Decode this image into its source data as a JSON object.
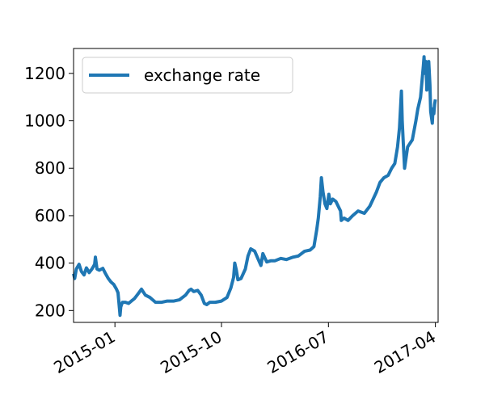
{
  "chart_data": {
    "type": "line",
    "title": "",
    "xlabel": "",
    "ylabel": "",
    "x_ticks": [
      "2015-01",
      "2015-10",
      "2016-07",
      "2017-04"
    ],
    "y_ticks": [
      200,
      400,
      600,
      800,
      1000,
      1200
    ],
    "xlim": [
      "2014-09-17",
      "2017-04-08"
    ],
    "ylim": [
      150,
      1305
    ],
    "grid": false,
    "legend": {
      "position": "top-left"
    },
    "colors": {
      "series": "#1f77b4",
      "axes": "#000000"
    },
    "series": [
      {
        "name": "exchange rate",
        "x": [
          "2014-09-17",
          "2014-09-20",
          "2014-09-24",
          "2014-10-01",
          "2014-10-07",
          "2014-10-14",
          "2014-10-20",
          "2014-10-27",
          "2014-11-03",
          "2014-11-10",
          "2014-11-12",
          "2014-11-16",
          "2014-11-22",
          "2014-12-01",
          "2014-12-08",
          "2014-12-15",
          "2014-12-22",
          "2014-12-29",
          "2015-01-05",
          "2015-01-09",
          "2015-01-13",
          "2015-01-14",
          "2015-01-16",
          "2015-01-20",
          "2015-01-28",
          "2015-02-05",
          "2015-02-12",
          "2015-02-20",
          "2015-03-01",
          "2015-03-10",
          "2015-03-20",
          "2015-04-01",
          "2015-04-15",
          "2015-05-01",
          "2015-05-15",
          "2015-06-01",
          "2015-06-15",
          "2015-07-01",
          "2015-07-10",
          "2015-07-15",
          "2015-07-22",
          "2015-08-01",
          "2015-08-10",
          "2015-08-18",
          "2015-08-24",
          "2015-09-01",
          "2015-09-15",
          "2015-10-01",
          "2015-10-15",
          "2015-10-25",
          "2015-11-01",
          "2015-11-04",
          "2015-11-08",
          "2015-11-12",
          "2015-11-20",
          "2015-12-01",
          "2015-12-08",
          "2015-12-15",
          "2015-12-25",
          "2016-01-10",
          "2016-01-15",
          "2016-01-25",
          "2016-02-05",
          "2016-02-15",
          "2016-03-01",
          "2016-03-15",
          "2016-04-01",
          "2016-04-15",
          "2016-05-01",
          "2016-05-15",
          "2016-05-25",
          "2016-06-01",
          "2016-06-05",
          "2016-06-10",
          "2016-06-13",
          "2016-06-17",
          "2016-06-22",
          "2016-06-27",
          "2016-07-02",
          "2016-07-06",
          "2016-07-12",
          "2016-07-20",
          "2016-08-01",
          "2016-08-03",
          "2016-08-10",
          "2016-08-20",
          "2016-09-01",
          "2016-09-15",
          "2016-10-01",
          "2016-10-15",
          "2016-11-01",
          "2016-11-10",
          "2016-11-20",
          "2016-12-01",
          "2016-12-10",
          "2016-12-18",
          "2016-12-25",
          "2016-12-30",
          "2017-01-04",
          "2017-01-06",
          "2017-01-09",
          "2017-01-12",
          "2017-01-20",
          "2017-02-01",
          "2017-02-10",
          "2017-02-15",
          "2017-02-22",
          "2017-03-01",
          "2017-03-03",
          "2017-03-05",
          "2017-03-08",
          "2017-03-10",
          "2017-03-12",
          "2017-03-15",
          "2017-03-18",
          "2017-03-20",
          "2017-03-24",
          "2017-03-26",
          "2017-03-28",
          "2017-03-30",
          "2017-04-01"
        ],
        "values": [
          355,
          335,
          375,
          395,
          365,
          350,
          380,
          360,
          375,
          395,
          425,
          375,
          370,
          378,
          355,
          335,
          320,
          310,
          290,
          275,
          200,
          180,
          215,
          235,
          235,
          230,
          240,
          250,
          270,
          290,
          265,
          255,
          235,
          235,
          240,
          240,
          245,
          265,
          285,
          290,
          280,
          285,
          265,
          230,
          225,
          235,
          235,
          240,
          255,
          295,
          340,
          400,
          370,
          330,
          335,
          375,
          430,
          460,
          450,
          390,
          440,
          405,
          410,
          410,
          420,
          415,
          425,
          430,
          450,
          455,
          470,
          540,
          590,
          680,
          760,
          700,
          650,
          630,
          690,
          650,
          670,
          660,
          620,
          580,
          590,
          580,
          600,
          620,
          610,
          640,
          700,
          740,
          760,
          770,
          800,
          820,
          890,
          970,
          1125,
          1000,
          900,
          800,
          890,
          920,
          1000,
          1050,
          1100,
          1230,
          1270,
          1200,
          1250,
          1130,
          1170,
          1250,
          1150,
          1040,
          990,
          1050,
          1030,
          1070,
          1090
        ]
      }
    ]
  }
}
